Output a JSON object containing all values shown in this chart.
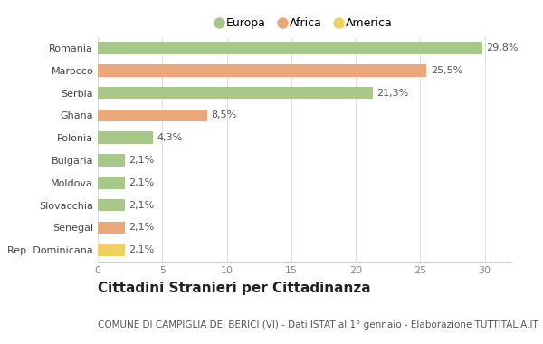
{
  "categories": [
    "Romania",
    "Marocco",
    "Serbia",
    "Ghana",
    "Polonia",
    "Bulgaria",
    "Moldova",
    "Slovacchia",
    "Senegal",
    "Rep. Dominicana"
  ],
  "values": [
    29.8,
    25.5,
    21.3,
    8.5,
    4.3,
    2.1,
    2.1,
    2.1,
    2.1,
    2.1
  ],
  "labels": [
    "29,8%",
    "25,5%",
    "21,3%",
    "8,5%",
    "4,3%",
    "2,1%",
    "2,1%",
    "2,1%",
    "2,1%",
    "2,1%"
  ],
  "colors": [
    "#a8c88a",
    "#e8a87c",
    "#a8c88a",
    "#e8a87c",
    "#a8c88a",
    "#a8c88a",
    "#a8c88a",
    "#a8c88a",
    "#e8a87c",
    "#f0d060"
  ],
  "legend_labels": [
    "Europa",
    "Africa",
    "America"
  ],
  "legend_colors": [
    "#a8c88a",
    "#e8a87c",
    "#f0d060"
  ],
  "xlim": [
    0,
    32
  ],
  "xticks": [
    0,
    5,
    10,
    15,
    20,
    25,
    30
  ],
  "title": "Cittadini Stranieri per Cittadinanza",
  "subtitle": "COMUNE DI CAMPIGLIA DEI BERICI (VI) - Dati ISTAT al 1° gennaio - Elaborazione TUTTITALIA.IT",
  "background_color": "#ffffff",
  "bar_height": 0.55,
  "title_fontsize": 11,
  "subtitle_fontsize": 7.5,
  "label_fontsize": 8,
  "tick_fontsize": 8,
  "legend_fontsize": 9
}
